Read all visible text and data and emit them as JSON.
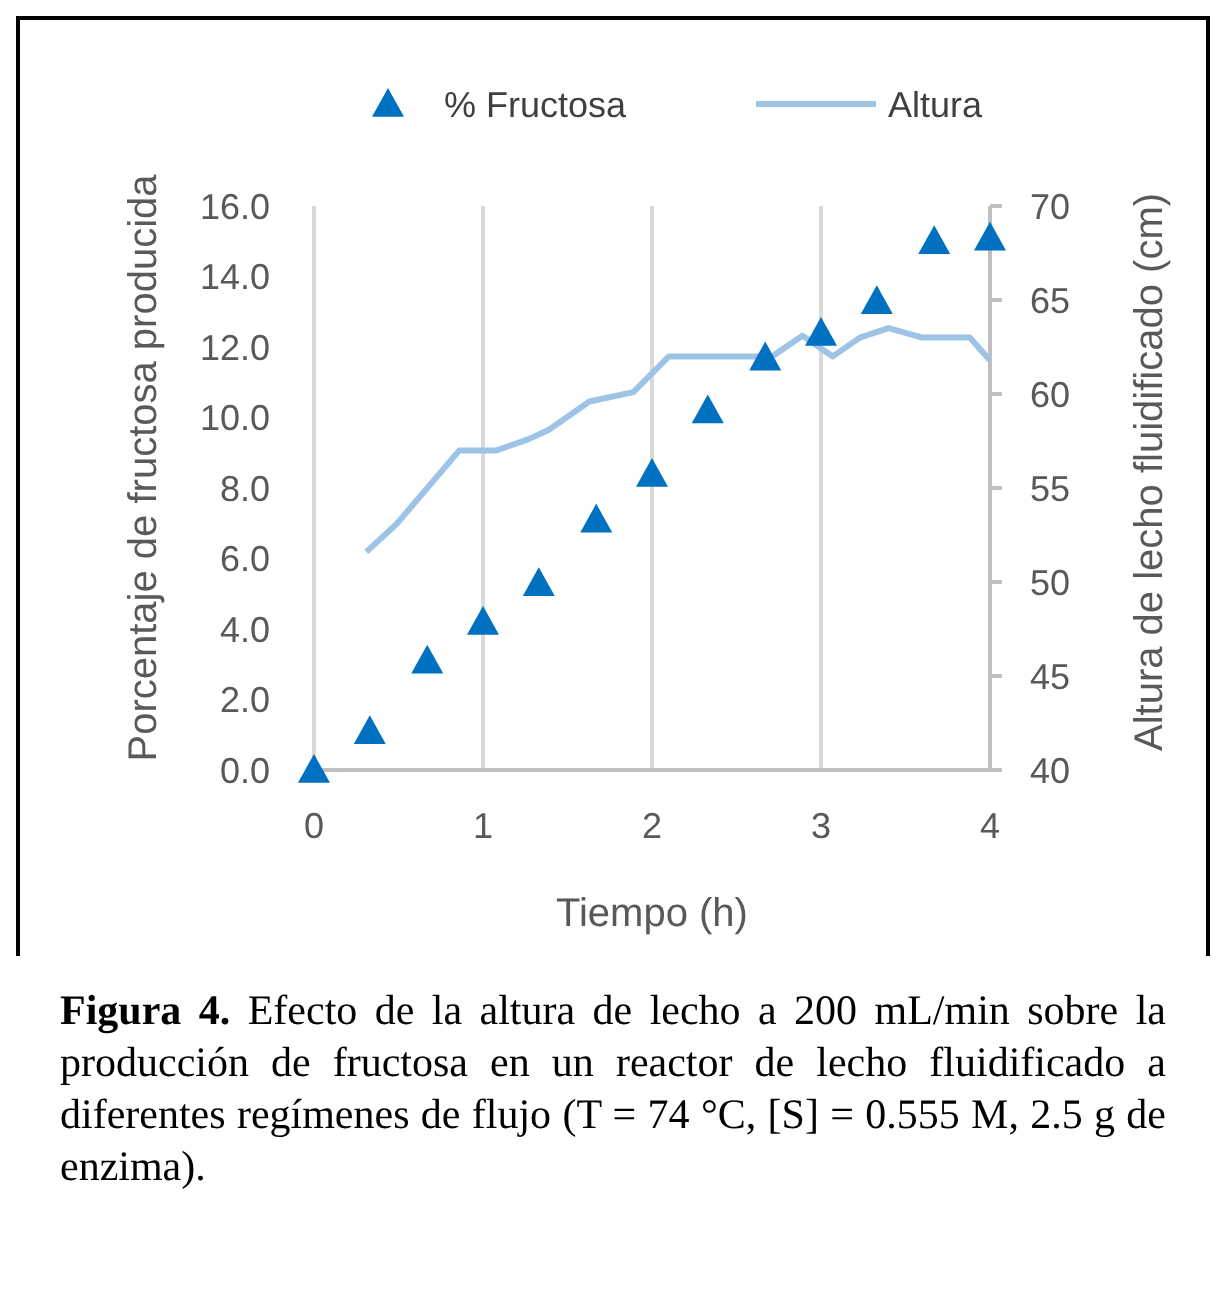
{
  "chart_data": {
    "type": "scatter",
    "xlabel": "Tiempo (h)",
    "ylabel": "Porcentaje de fructosa producida",
    "y2label": "Altura de lecho fluidificado (cm)",
    "xlim": [
      0,
      4
    ],
    "xticks": [
      0,
      1,
      2,
      3,
      4
    ],
    "ylim": [
      0,
      16
    ],
    "yticks": [
      {
        "value": 0,
        "label": "0.0"
      },
      {
        "value": 2,
        "label": "2.0"
      },
      {
        "value": 4,
        "label": "4.0"
      },
      {
        "value": 6,
        "label": "6.0"
      },
      {
        "value": 8,
        "label": "8.0"
      },
      {
        "value": 10,
        "label": "10.0"
      },
      {
        "value": 12,
        "label": "12.0"
      },
      {
        "value": 14,
        "label": "14.0"
      },
      {
        "value": 16,
        "label": "16.0"
      }
    ],
    "y2lim": [
      40,
      70
    ],
    "y2ticks": [
      40,
      45,
      50,
      55,
      60,
      65,
      70
    ],
    "grid": "x",
    "legend": "top",
    "series": [
      {
        "name": "% Fructosa",
        "marker": "triangle",
        "color": "#0070c0",
        "x": [
          0,
          0.33,
          0.67,
          1,
          1.33,
          1.67,
          2,
          2.33,
          2.67,
          3,
          3.33,
          3.67,
          4
        ],
        "values": [
          0,
          1.1,
          3.1,
          4.2,
          5.3,
          7.1,
          8.4,
          10.2,
          11.7,
          12.4,
          13.3,
          15.0,
          15.1
        ]
      },
      {
        "name": "Altura",
        "type": "line",
        "axis": "y2",
        "color": "#9dc3e6",
        "x": [
          0.31,
          0.49,
          0.86,
          1.08,
          1.27,
          1.39,
          1.63,
          1.89,
          2.1,
          2.71,
          2.89,
          3.07,
          3.23,
          3.4,
          3.6,
          3.88,
          4
        ],
        "values": [
          51.6,
          53.1,
          57,
          57,
          57.6,
          58.1,
          59.6,
          60.1,
          62,
          62,
          63.1,
          62,
          63,
          63.5,
          63,
          63,
          61.8
        ]
      }
    ],
    "annotations": [
      "Figura 4. Efecto de la altura de lecho a 200 mL/min sobre la producción de fructosa en un reactor de lecho fluidificado a diferentes regímenes de flujo (T = 74 °C, [S] = 0.555 M, 2.5 g de enzima)."
    ]
  }
}
